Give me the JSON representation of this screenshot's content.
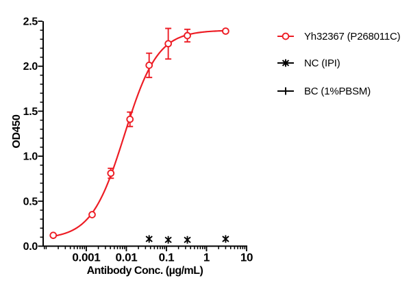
{
  "figure": {
    "background": "#ffffff",
    "accent_red": "#ED1C24",
    "axis_color": "#000000"
  },
  "chart_data": {
    "type": "line",
    "title": "",
    "xlabel": "Antibody Conc. (µg/mL)",
    "ylabel": "OD450",
    "x_scale": "log10",
    "xlim": [
      8.4e-05,
      10
    ],
    "ylim": [
      0,
      2.5
    ],
    "x_tick_values": [
      0.001,
      0.01,
      0.1,
      1,
      10
    ],
    "x_tick_labels": [
      "0.001",
      "0.01",
      "0.1",
      "1",
      "10"
    ],
    "y_tick_values": [
      0,
      0.5,
      1,
      1.5,
      2,
      2.5
    ],
    "y_tick_labels": [
      "0.0",
      "0.5",
      "1.0",
      "1.5",
      "2.0",
      "2.5"
    ],
    "y_minor_step": 0.1,
    "grid": false,
    "legend_position": "right-outside",
    "series": [
      {
        "name": "Yh32367 (P268011C)",
        "color": "#ED1C24",
        "marker": "open-circle",
        "x": [
          0.00015,
          0.0014,
          0.0041,
          0.0123,
          0.037,
          0.111,
          0.333,
          3
        ],
        "y": [
          0.12,
          0.35,
          0.81,
          1.41,
          2.01,
          2.25,
          2.34,
          2.39
        ],
        "yerr": [
          0,
          0,
          0.055,
          0.08,
          0.135,
          0.17,
          0.07,
          0
        ],
        "fit_curve": {
          "model": "4PL",
          "bottom": 0.08,
          "top": 2.4,
          "ec50": 0.009,
          "hill": 1.05,
          "x_start": 0.00015,
          "x_end": 3
        }
      },
      {
        "name": "NC (IPI)",
        "color": "#000000",
        "marker": "star",
        "x": [
          0.037,
          0.111,
          0.333,
          3
        ],
        "y": [
          0.08,
          0.07,
          0.07,
          0.08
        ],
        "yerr": [
          0,
          0,
          0,
          0
        ]
      },
      {
        "name": "BC (1%PBSM)",
        "color": "#000000",
        "marker": "plus",
        "x": [],
        "y": [],
        "yerr": []
      }
    ]
  },
  "legend": {
    "items": [
      {
        "label": "Yh32367 (P268011C)",
        "marker": "open-circle",
        "color": "#ED1C24"
      },
      {
        "label": "NC (IPI)",
        "marker": "star",
        "color": "#000000"
      },
      {
        "label": "BC (1%PBSM)",
        "marker": "plus",
        "color": "#000000"
      }
    ]
  }
}
